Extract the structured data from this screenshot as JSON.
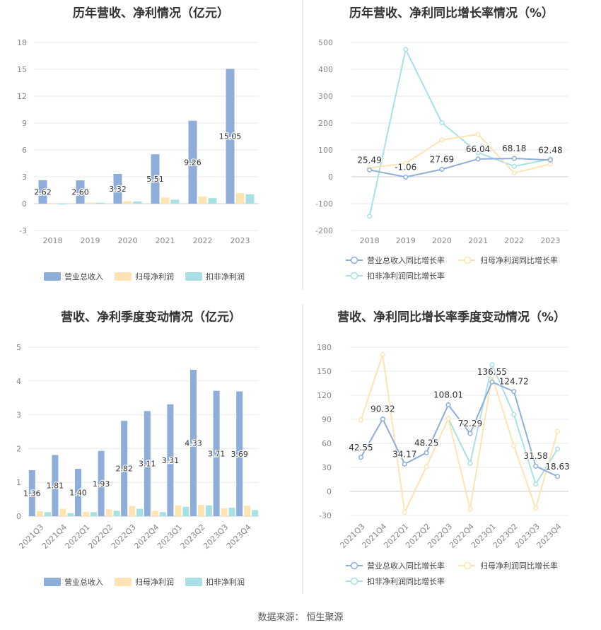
{
  "footer": {
    "label": "数据来源：",
    "source": "恒生聚源"
  },
  "colors": {
    "revenue": "#8eadd9",
    "net_profit": "#fde4b2",
    "deducted": "#a8e1e3",
    "rev_growth": "#8eadd9",
    "np_growth": "#fde4b2",
    "ded_growth": "#a8e1e3"
  },
  "chart_data": [
    {
      "id": "annual-bars",
      "type": "bar",
      "title": "历年营收、净利情况（亿元）",
      "categories": [
        "2018",
        "2019",
        "2020",
        "2021",
        "2022",
        "2023"
      ],
      "series": [
        {
          "name": "营业总收入",
          "values": [
            2.62,
            2.6,
            3.32,
            5.51,
            9.26,
            15.05
          ]
        },
        {
          "name": "归母净利润",
          "values": [
            -0.05,
            0.12,
            0.28,
            0.68,
            0.8,
            1.18
          ]
        },
        {
          "name": "扣非净利润",
          "values": [
            -0.08,
            0.1,
            0.24,
            0.44,
            0.62,
            1.05
          ]
        }
      ],
      "data_labels": [
        "2.62",
        "2.60",
        "3.32",
        "5.51",
        "9.26",
        "15.05"
      ],
      "ylim": [
        -3,
        18
      ],
      "yticks": [
        "-3",
        "0",
        "3",
        "6",
        "9",
        "12",
        "15",
        "18"
      ],
      "legend": "bottom"
    },
    {
      "id": "annual-growth",
      "type": "line",
      "title": "历年营收、净利同比增长率情况（%）",
      "categories": [
        "2018",
        "2019",
        "2020",
        "2021",
        "2022",
        "2023"
      ],
      "series": [
        {
          "name": "营业总收入同比增长率",
          "values": [
            25.49,
            -1.06,
            27.69,
            66.04,
            68.18,
            62.48
          ]
        },
        {
          "name": "归母净利润同比增长率",
          "values": [
            33,
            50,
            137,
            158,
            14,
            47
          ]
        },
        {
          "name": "扣非净利润同比增长率",
          "values": [
            -147,
            474,
            201,
            90,
            39,
            66
          ]
        }
      ],
      "data_labels": [
        "25.49",
        "-1.06",
        "27.69",
        "66.04",
        "68.18",
        "62.48"
      ],
      "ylim": [
        -200,
        500
      ],
      "yticks": [
        "-200",
        "-100",
        "0",
        "100",
        "200",
        "300",
        "400",
        "500"
      ],
      "legend": "bottom"
    },
    {
      "id": "quarter-bars",
      "type": "bar",
      "title": "营收、净利季度变动情况（亿元）",
      "categories": [
        "2021Q3",
        "2021Q4",
        "2022Q1",
        "2022Q2",
        "2022Q3",
        "2022Q4",
        "2023Q1",
        "2023Q2",
        "2023Q3",
        "2023Q4"
      ],
      "series": [
        {
          "name": "营业总收入",
          "values": [
            1.36,
            1.81,
            1.4,
            1.93,
            2.82,
            3.11,
            3.31,
            4.33,
            3.71,
            3.69
          ]
        },
        {
          "name": "归母净利润",
          "values": [
            0.15,
            0.22,
            0.13,
            0.2,
            0.3,
            0.16,
            0.32,
            0.33,
            0.23,
            0.31
          ]
        },
        {
          "name": "扣非净利润",
          "values": [
            0.12,
            0.09,
            0.12,
            0.16,
            0.22,
            0.12,
            0.28,
            0.32,
            0.25,
            0.18
          ]
        }
      ],
      "data_labels": [
        "1.36",
        "1.81",
        "1.40",
        "1.93",
        "2.82",
        "3.11",
        "3.31",
        "4.33",
        "3.71",
        "3.69"
      ],
      "ylim": [
        0,
        5
      ],
      "yticks": [
        "0",
        "1",
        "2",
        "3",
        "4",
        "5"
      ],
      "legend": "bottom"
    },
    {
      "id": "quarter-growth",
      "type": "line",
      "title": "营收、净利同比增长率季度变动情况（%）",
      "categories": [
        "2021Q3",
        "2021Q4",
        "2022Q1",
        "2022Q2",
        "2022Q3",
        "2022Q4",
        "2023Q1",
        "2023Q2",
        "2023Q3",
        "2023Q4"
      ],
      "series": [
        {
          "name": "营业总收入同比增长率",
          "values": [
            42.55,
            90.32,
            34.17,
            48.25,
            108.01,
            72.29,
            136.55,
            124.72,
            31.58,
            18.63
          ]
        },
        {
          "name": "归母净利润同比增长率",
          "values": [
            89,
            171,
            -26,
            31,
            91,
            -22,
            144,
            57,
            -21,
            75
          ]
        },
        {
          "name": "扣非净利润同比增长率",
          "values": [
            null,
            null,
            null,
            null,
            91,
            35,
            158,
            96,
            9,
            53
          ]
        }
      ],
      "data_labels": [
        "42.55",
        "90.32",
        "34.17",
        "48.25",
        "108.01",
        "72.29",
        "136.55",
        "124.72",
        "31.58",
        "18.63"
      ],
      "ylim": [
        -30,
        180
      ],
      "yticks": [
        "-30",
        "0",
        "30",
        "60",
        "90",
        "120",
        "150",
        "180"
      ],
      "legend": "bottom"
    }
  ]
}
